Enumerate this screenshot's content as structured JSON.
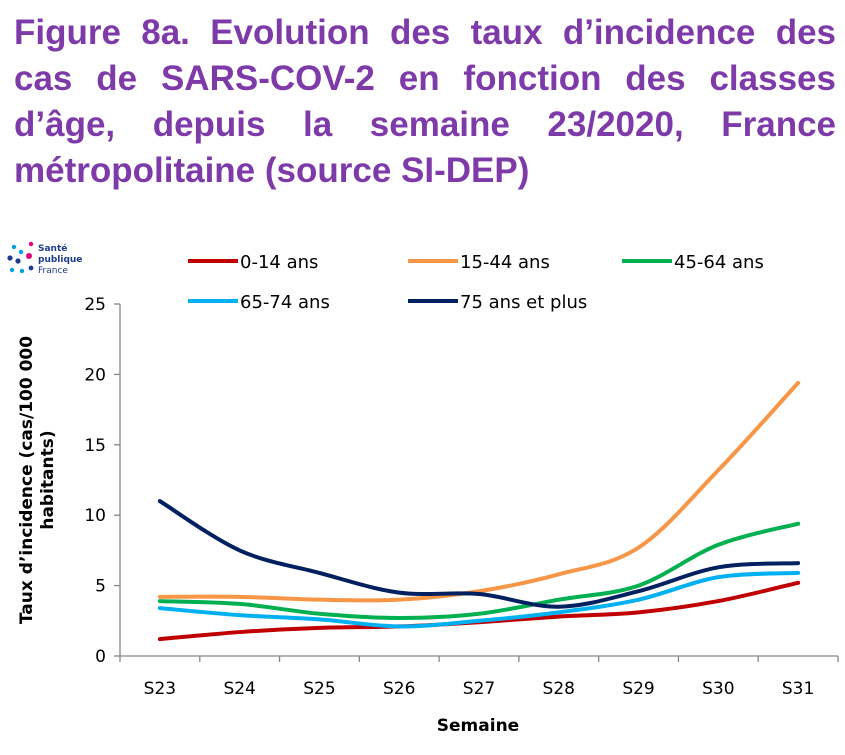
{
  "title": "Figure 8a. Evolution des taux d’incidence des cas de SARS-COV-2 en fonction des classes d’âge, depuis la semaine 23/2020, France métropolitaine (source SI-DEP)",
  "logo": {
    "line1": "Santé",
    "line2": "publique",
    "line3": "France"
  },
  "chart_data": {
    "type": "line",
    "title": "",
    "xlabel": "Semaine",
    "ylabel": "Taux d’incidence (cas/100 000 habitants)",
    "ylabel_line1": "Taux d’incidence (cas/100 000",
    "ylabel_line2": "habitants)",
    "x": [
      "S23",
      "S24",
      "S25",
      "S26",
      "S27",
      "S28",
      "S29",
      "S30",
      "S31"
    ],
    "ylim": [
      0,
      25
    ],
    "yticks": [
      "0",
      "5",
      "10",
      "15",
      "20",
      "25"
    ],
    "grid": false,
    "legend": "top",
    "series": [
      {
        "name": "0-14 ans",
        "color": "#c00000",
        "values": [
          1.2,
          1.7,
          2.0,
          2.1,
          2.4,
          2.8,
          3.1,
          3.9,
          5.2
        ]
      },
      {
        "name": "15-44 ans",
        "color": "#f79646",
        "values": [
          4.2,
          4.2,
          4.0,
          4.0,
          4.6,
          5.8,
          7.7,
          13.2,
          19.4
        ]
      },
      {
        "name": "45-64 ans",
        "color": "#00b050",
        "values": [
          3.9,
          3.7,
          3.0,
          2.7,
          3.0,
          4.0,
          5.0,
          7.9,
          9.4
        ]
      },
      {
        "name": "65-74 ans",
        "color": "#00b0f0",
        "values": [
          3.4,
          2.9,
          2.6,
          2.1,
          2.5,
          3.1,
          4.0,
          5.6,
          5.9
        ]
      },
      {
        "name": "75 ans et plus",
        "color": "#002060",
        "values": [
          11.0,
          7.5,
          5.9,
          4.5,
          4.4,
          3.5,
          4.6,
          6.3,
          6.6
        ]
      }
    ]
  }
}
